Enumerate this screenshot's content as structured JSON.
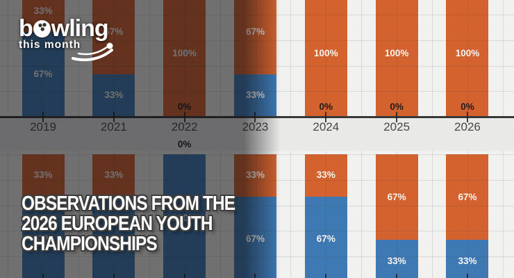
{
  "logo": {
    "word_pre": "b",
    "word_post": "wling",
    "tagline": "this month"
  },
  "title": {
    "line1": "OBSERVATIONS FROM THE",
    "line2": "2026 EUROPEAN YOUTH",
    "line3": "CHAMPIONSHIPS"
  },
  "chart_data": {
    "type": "bar",
    "stacked": true,
    "value_format": "percent",
    "label_suffix": "%",
    "grid": true,
    "categories": [
      "2019",
      "2021",
      "2022",
      "2023",
      "2024",
      "2025",
      "2026"
    ],
    "charts": [
      {
        "position": "top",
        "series": [
          {
            "name": "blue",
            "color": "#3e79b4",
            "values": [
              67,
              33,
              0,
              33,
              0,
              0,
              0
            ]
          },
          {
            "name": "orange",
            "color": "#d4622e",
            "values": [
              33,
              67,
              100,
              67,
              100,
              100,
              100
            ]
          }
        ]
      },
      {
        "position": "bottom",
        "series": [
          {
            "name": "blue",
            "color": "#3e79b4",
            "values": [
              67,
              67,
              100,
              67,
              67,
              33,
              33
            ]
          },
          {
            "name": "orange",
            "color": "#d4622e",
            "values": [
              33,
              33,
              0,
              33,
              33,
              67,
              67
            ]
          }
        ]
      }
    ],
    "colors": {
      "orange": "#d4622e",
      "blue": "#3e79b4",
      "axis": "#383838",
      "plot_background": "#f1f1f0",
      "band_background": "#e9e9e8",
      "label_light": "#f6f4f1",
      "label_dark": "#1f1c1a"
    }
  }
}
